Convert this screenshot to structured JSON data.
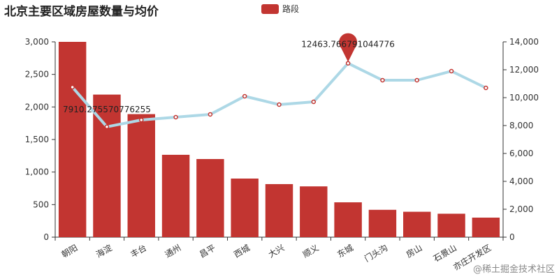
{
  "colors": {
    "bar": "#c23531",
    "line": "#add8e6",
    "point_stroke": "#c23531",
    "axis": "#333333",
    "text": "#333333"
  },
  "watermark": "@稀土掘金技术社区",
  "chart_data": {
    "type": "bar",
    "title": "北京主要区域房屋数量与均价",
    "categories": [
      "朝阳",
      "海淀",
      "丰台",
      "通州",
      "昌平",
      "西城",
      "大兴",
      "顺义",
      "东城",
      "门头沟",
      "房山",
      "石景山",
      "亦庄开发区"
    ],
    "series": [
      {
        "name": "路段",
        "type": "bar",
        "axis": "left",
        "values": [
          3000,
          2190,
          1890,
          1265,
          1200,
          900,
          815,
          780,
          535,
          420,
          390,
          360,
          300
        ]
      },
      {
        "type": "line",
        "axis": "right",
        "values": [
          10750,
          7910.275570776255,
          8400,
          8600,
          8800,
          10100,
          9500,
          9700,
          12463.766791044776,
          11250,
          11250,
          11900,
          10700
        ]
      }
    ],
    "markers": {
      "max_label": "12463.766791044776",
      "min_label": "7910.275570776255"
    },
    "y_left": {
      "min": 0,
      "max": 3000,
      "ticks": [
        "0",
        "500",
        "1,000",
        "1,500",
        "2,000",
        "2,500",
        "3,000"
      ]
    },
    "y_right": {
      "min": 0,
      "max": 14000,
      "ticks": [
        "0",
        "2,000",
        "4,000",
        "6,000",
        "8,000",
        "10,000",
        "12,000",
        "14,000"
      ]
    },
    "legend": {
      "position": "top-center"
    },
    "grid": false
  }
}
